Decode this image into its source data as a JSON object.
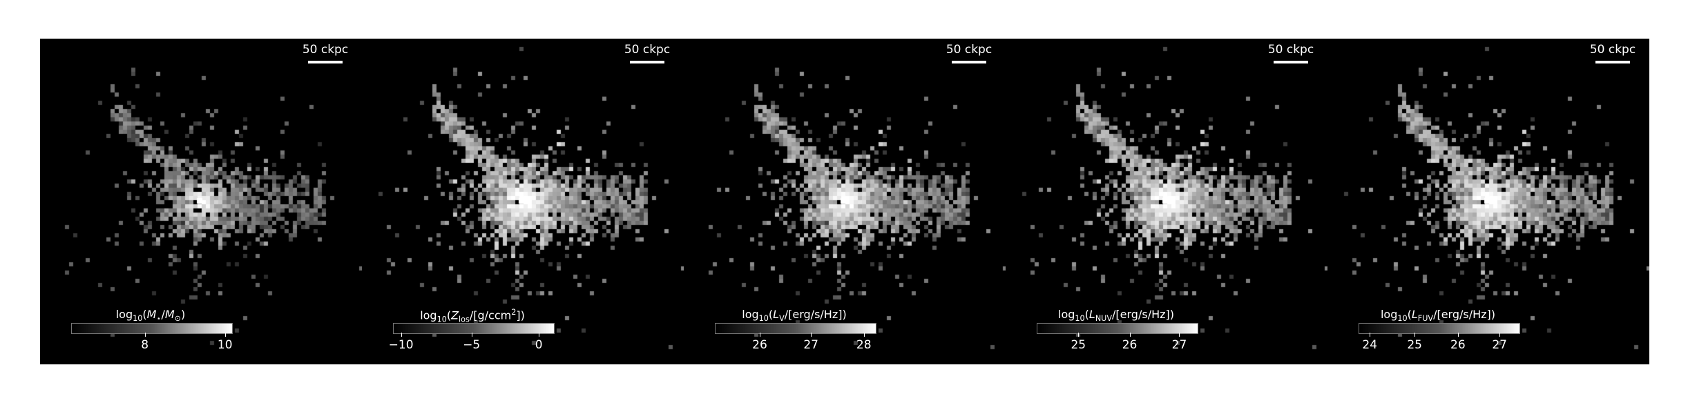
{
  "panels": [
    {
      "scale_label": "50 ckpc",
      "cbar_prefix": "log",
      "cbar_base": "10",
      "cbar_open": "(",
      "cbar_var": "M",
      "cbar_var_sub": "⋆",
      "cbar_div": "/",
      "cbar_unit": "M",
      "cbar_unit_sub": "⊙",
      "cbar_close": ")",
      "ticks": [
        {
          "label": "8",
          "frac": 0.46
        },
        {
          "label": "10",
          "frac": 0.96
        }
      ],
      "spread": 0.55
    },
    {
      "scale_label": "50 ckpc",
      "cbar_prefix": "log",
      "cbar_base": "10",
      "cbar_open": "(",
      "cbar_var": "Z",
      "cbar_var_sub": "los",
      "cbar_div": "/[g/ccm",
      "cbar_unit": "",
      "cbar_unit_sup": "2",
      "cbar_close": "])",
      "ticks": [
        {
          "label": "−10",
          "frac": 0.05
        },
        {
          "label": "−5",
          "frac": 0.49
        },
        {
          "label": "0",
          "frac": 0.91
        }
      ],
      "spread": 1.0
    },
    {
      "scale_label": "50 ckpc",
      "cbar_prefix": "log",
      "cbar_base": "10",
      "cbar_open": "(",
      "cbar_var": "L",
      "cbar_var_sub": "V",
      "cbar_div": "/[erg/s/Hz])",
      "cbar_unit": "",
      "cbar_close": "",
      "ticks": [
        {
          "label": "26",
          "frac": 0.28
        },
        {
          "label": "27",
          "frac": 0.6
        },
        {
          "label": "28",
          "frac": 0.93
        }
      ],
      "spread": 0.9
    },
    {
      "scale_label": "50 ckpc",
      "cbar_prefix": "log",
      "cbar_base": "10",
      "cbar_open": "(",
      "cbar_var": "L",
      "cbar_var_sub": "NUV",
      "cbar_div": "/[erg/s/Hz])",
      "cbar_unit": "",
      "cbar_close": "",
      "ticks": [
        {
          "label": "25",
          "frac": 0.26
        },
        {
          "label": "26",
          "frac": 0.58
        },
        {
          "label": "27",
          "frac": 0.89
        }
      ],
      "spread": 1.0
    },
    {
      "scale_label": "50 ckpc",
      "cbar_prefix": "log",
      "cbar_base": "10",
      "cbar_open": "(",
      "cbar_var": "L",
      "cbar_var_sub": "FUV",
      "cbar_div": "/[erg/s/Hz])",
      "cbar_unit": "",
      "cbar_close": "",
      "ticks": [
        {
          "label": "24",
          "frac": 0.07
        },
        {
          "label": "25",
          "frac": 0.35
        },
        {
          "label": "26",
          "frac": 0.62
        },
        {
          "label": "27",
          "frac": 0.88
        }
      ],
      "spread": 1.0
    }
  ]
}
